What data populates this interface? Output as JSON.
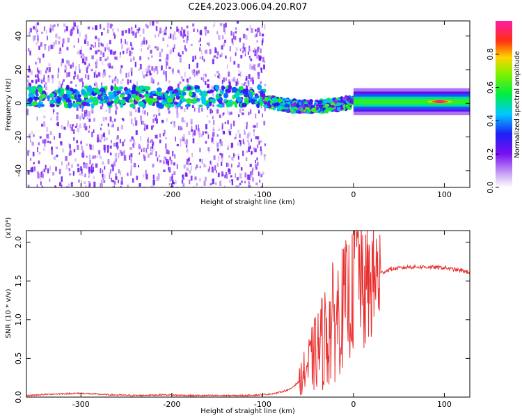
{
  "figure": {
    "title": "C2E4.2023.006.04.20.R07"
  },
  "chart_data": [
    {
      "type": "heatmap",
      "xlabel": "Height of straight line (km)",
      "ylabel": "Frequency (Hz)",
      "xlim": [
        -360,
        128
      ],
      "ylim": [
        -50,
        49
      ],
      "x_ticks": [
        -300,
        -200,
        -100,
        0,
        100
      ],
      "x_tick_labels": [
        "-300",
        "-200",
        "-100",
        "0",
        "100"
      ],
      "y_ticks": [
        -40,
        -20,
        0,
        20,
        40
      ],
      "y_tick_labels": [
        "-40",
        "-20",
        "0",
        "20",
        "40"
      ],
      "colorbar": {
        "label": "Normalized spectral amplitude",
        "range": [
          0.0,
          1.0
        ],
        "ticks": [
          0.0,
          0.2,
          0.4,
          0.6,
          0.8
        ],
        "tick_labels": [
          "0.0",
          "0.2",
          "0.4",
          "0.6",
          "0.8"
        ],
        "colormap": "rainbow (white-purple-blue-cyan-green-yellow-red-magenta)"
      },
      "regions": [
        {
          "x_range": [
            -360,
            -98
          ],
          "description_level": "broadband scatter",
          "band_center_hz": 4,
          "band_width_hz": 8,
          "noise_amplitude": 0.2,
          "band_amplitude": 0.4
        },
        {
          "x_range": [
            -98,
            0
          ],
          "band_center_hz": -3,
          "band_amplitude": 0.5
        },
        {
          "x_range": [
            0,
            128
          ],
          "band_center_hz": 1,
          "band_width_hz": 4,
          "band_amplitude": 0.6,
          "peak_at_x": 95,
          "peak_amplitude": 0.95
        }
      ],
      "grid": false
    },
    {
      "type": "line",
      "xlabel": "Height of straight line (km)",
      "ylabel": "SNR (10 * v/v)",
      "y_multiplier": "(x10⁴)",
      "xlim": [
        -360,
        128
      ],
      "ylim": [
        0.0,
        2.15
      ],
      "x_ticks": [
        -300,
        -200,
        -100,
        0,
        100
      ],
      "x_tick_labels": [
        "-300",
        "-200",
        "-100",
        "0",
        "100"
      ],
      "y_ticks": [
        0.0,
        0.5,
        1.0,
        1.5,
        2.0
      ],
      "y_tick_labels": [
        "0.0",
        "0.5",
        "1.0",
        "1.5",
        "2.0"
      ],
      "color": "#e8302f",
      "series": [
        {
          "x": [
            -360,
            -330,
            -300,
            -270,
            -240,
            -210,
            -180,
            -150,
            -120,
            -100,
            -85,
            -70,
            -60,
            -50,
            -40,
            -30,
            -20,
            -10,
            0,
            2,
            10,
            20,
            30,
            40,
            60,
            80,
            100,
            110,
            120,
            128
          ],
          "values": [
            0.02,
            0.04,
            0.05,
            0.03,
            0.02,
            0.03,
            0.02,
            0.02,
            0.02,
            0.03,
            0.05,
            0.1,
            0.2,
            0.4,
            0.6,
            0.8,
            1.0,
            1.2,
            1.35,
            2.15,
            1.3,
            1.5,
            1.6,
            1.65,
            1.68,
            1.68,
            1.67,
            1.65,
            1.63,
            1.61
          ]
        }
      ],
      "grid": false
    }
  ]
}
